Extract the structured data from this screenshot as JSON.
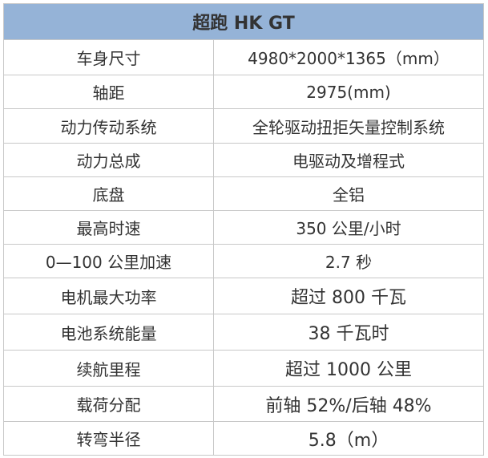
{
  "title": "超跑 HK GT",
  "header_color": "#95b3d7",
  "rows": [
    {
      "label": "车身尺寸",
      "value": "4980*2000*1365（mm）"
    },
    {
      "label": "轴距",
      "value": "2975(mm)"
    },
    {
      "label": "动力传动系统",
      "value": "全轮驱动扭拒矢量控制系统"
    },
    {
      "label": "动力总成",
      "value": "电驱动及增程式"
    },
    {
      "label": "底盘",
      "value": "全铝"
    },
    {
      "label": "最高时速",
      "value": "350 公里/小时"
    },
    {
      "label": "0—100 公里加速",
      "value": "2.7 秒"
    },
    {
      "label": "电机最大功率",
      "value": "超过 800 千瓦"
    },
    {
      "label": "电池系统能量",
      "value": "38 千瓦时"
    },
    {
      "label": "续航里程",
      "value": "超过 1000 公里"
    },
    {
      "label": "载荷分配",
      "value": "前轴 52%/后轴 48%"
    },
    {
      "label": "转弯半径",
      "value": "5.8（m）"
    }
  ]
}
